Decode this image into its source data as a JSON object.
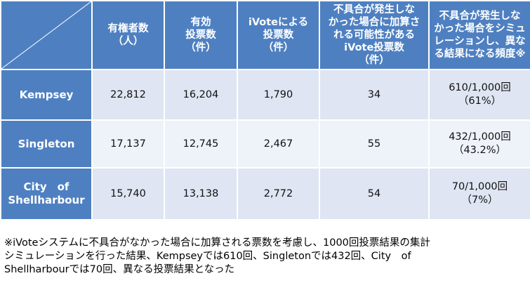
{
  "table": {
    "headers": [
      [
        "有権者数",
        "（人）"
      ],
      [
        "有効",
        "投票数",
        "（件）"
      ],
      [
        "iVoteによる",
        "投票数",
        "（件）"
      ],
      [
        "不具合が発生しな",
        "かった場合に加算さ",
        "れる可能性がある",
        "iVote投票数",
        "（件）"
      ],
      [
        "不具合が発生しな",
        "かった場合をシミュ",
        "レーションし、異な",
        "る結果になる頻度※"
      ]
    ],
    "rows": [
      {
        "name": [
          "Kempsey"
        ],
        "voters": "22,812",
        "valid_votes": "16,204",
        "ivotes": "1,790",
        "possible": "34",
        "freq": [
          "610/1,000回",
          "（61%）"
        ]
      },
      {
        "name": [
          "Singleton"
        ],
        "voters": "17,137",
        "valid_votes": "12,745",
        "ivotes": "2,467",
        "possible": "55",
        "freq": [
          "432/1,000回",
          "（43.2%）"
        ]
      },
      {
        "name": [
          "City　of",
          "Shellharbour"
        ],
        "voters": "15,740",
        "valid_votes": "13,138",
        "ivotes": "2,772",
        "possible": "54",
        "freq": [
          "70/1,000回",
          "（7%）"
        ]
      }
    ]
  },
  "footnote": [
    "※iVoteシステムに不具合がなかった場合に加算される票数を考慮し、1000回投票結果の集計",
    "シミュレーションを行った結果、Kempseyでは610回、Singletonでは432回、City　of",
    "Shellharbourでは70回、異なる投票結果となった"
  ],
  "colors": {
    "header": "#4e80c1",
    "row_dark": "#dfe5f2",
    "row_light": "#eef2f9"
  }
}
